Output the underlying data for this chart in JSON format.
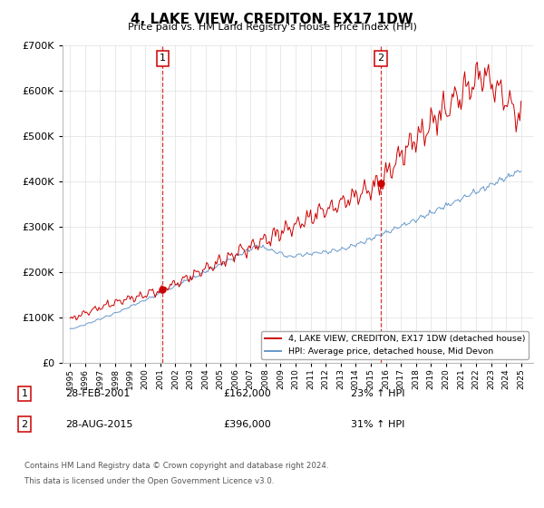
{
  "title": "4, LAKE VIEW, CREDITON, EX17 1DW",
  "subtitle": "Price paid vs. HM Land Registry's House Price Index (HPI)",
  "ytick_values": [
    0,
    100000,
    200000,
    300000,
    400000,
    500000,
    600000,
    700000
  ],
  "ylim": [
    0,
    700000
  ],
  "xlim_start": 1994.5,
  "xlim_end": 2025.8,
  "xtick_years": [
    1995,
    1996,
    1997,
    1998,
    1999,
    2000,
    2001,
    2002,
    2003,
    2004,
    2005,
    2006,
    2007,
    2008,
    2009,
    2010,
    2011,
    2012,
    2013,
    2014,
    2015,
    2016,
    2017,
    2018,
    2019,
    2020,
    2021,
    2022,
    2023,
    2024,
    2025
  ],
  "red_line_color": "#cc0000",
  "blue_line_color": "#6699cc",
  "marker_color": "#cc0000",
  "vline_color": "#cc0000",
  "legend_border_color": "#aaaaaa",
  "annotation_border_color": "#cc0000",
  "transaction1_x": 2001.15,
  "transaction1_y": 162000,
  "transaction1_label": "1",
  "transaction1_date": "28-FEB-2001",
  "transaction1_price": "£162,000",
  "transaction1_hpi": "23% ↑ HPI",
  "transaction2_x": 2015.66,
  "transaction2_y": 396000,
  "transaction2_label": "2",
  "transaction2_date": "28-AUG-2015",
  "transaction2_price": "£396,000",
  "transaction2_hpi": "31% ↑ HPI",
  "legend_line1": "4, LAKE VIEW, CREDITON, EX17 1DW (detached house)",
  "legend_line2": "HPI: Average price, detached house, Mid Devon",
  "footer_line1": "Contains HM Land Registry data © Crown copyright and database right 2024.",
  "footer_line2": "This data is licensed under the Open Government Licence v3.0.",
  "background_color": "#ffffff",
  "grid_color": "#e0e0e0"
}
